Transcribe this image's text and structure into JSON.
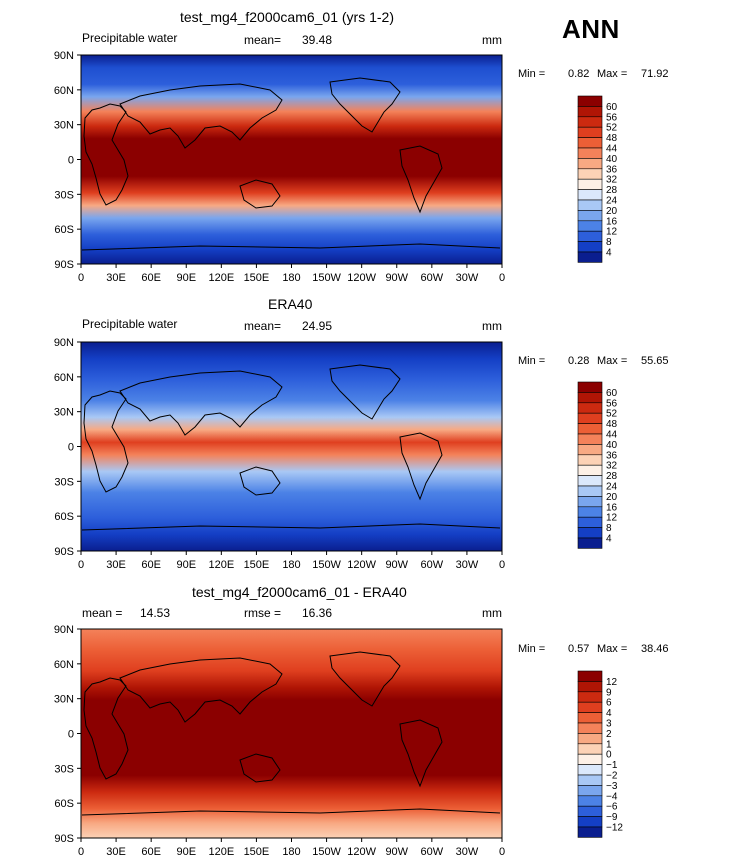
{
  "season_label": "ANN",
  "panels": [
    {
      "title": "test_mg4_f2000cam6_01 (yrs 1-2)",
      "left_label": "Precipitable water",
      "stat_label": "mean=",
      "stat_value": "39.48",
      "stat2_label": "",
      "stat2_value": "",
      "units": "mm",
      "min_label": "Min =",
      "min_value": "0.82",
      "max_label": "Max =",
      "max_value": "71.92",
      "colorbar": {
        "labels": [
          "60",
          "56",
          "52",
          "48",
          "44",
          "40",
          "36",
          "32",
          "28",
          "24",
          "20",
          "16",
          "12",
          "8",
          "4"
        ],
        "colors": [
          "#8b0000",
          "#b01505",
          "#cc2a10",
          "#df3f1f",
          "#ec5f36",
          "#f4825a",
          "#f8a983",
          "#fcd2b6",
          "#fdf0e6",
          "#dbe8fb",
          "#a9c8f5",
          "#7aa6ee",
          "#4c82e6",
          "#2d5fdb",
          "#143fc5",
          "#0a1e8f"
        ]
      }
    },
    {
      "title": "ERA40",
      "left_label": "Precipitable water",
      "stat_label": "mean=",
      "stat_value": "24.95",
      "stat2_label": "",
      "stat2_value": "",
      "units": "mm",
      "min_label": "Min =",
      "min_value": "0.28",
      "max_label": "Max =",
      "max_value": "55.65",
      "colorbar": {
        "labels": [
          "60",
          "56",
          "52",
          "48",
          "44",
          "40",
          "36",
          "32",
          "28",
          "24",
          "20",
          "16",
          "12",
          "8",
          "4"
        ],
        "colors": [
          "#8b0000",
          "#b01505",
          "#cc2a10",
          "#df3f1f",
          "#ec5f36",
          "#f4825a",
          "#f8a983",
          "#fcd2b6",
          "#fdf0e6",
          "#dbe8fb",
          "#a9c8f5",
          "#7aa6ee",
          "#4c82e6",
          "#2d5fdb",
          "#143fc5",
          "#0a1e8f"
        ]
      }
    },
    {
      "title": "test_mg4_f2000cam6_01 - ERA40",
      "left_label": "mean =",
      "stat_label": "",
      "stat_value": "14.53",
      "stat2_label": "rmse =",
      "stat2_value": "16.36",
      "units": "mm",
      "min_label": "Min =",
      "min_value": "0.57",
      "max_label": "Max =",
      "max_value": "38.46",
      "colorbar": {
        "labels": [
          "12",
          "9",
          "6",
          "4",
          "3",
          "2",
          "1",
          "0",
          "−1",
          "−2",
          "−3",
          "−4",
          "−6",
          "−9",
          "−12"
        ],
        "colors": [
          "#8b0000",
          "#b01505",
          "#cc2a10",
          "#df3f1f",
          "#ec5f36",
          "#f4825a",
          "#f8a983",
          "#fcd2b6",
          "#fdf0e6",
          "#dbe8fb",
          "#a9c8f5",
          "#7aa6ee",
          "#4c82e6",
          "#2d5fdb",
          "#143fc5",
          "#0a1e8f"
        ]
      }
    }
  ],
  "axes": {
    "lat_ticks": [
      "90N",
      "60N",
      "30N",
      "0",
      "30S",
      "60S",
      "90S"
    ],
    "lon_ticks": [
      "0",
      "30E",
      "60E",
      "90E",
      "120E",
      "150E",
      "180",
      "150W",
      "120W",
      "90W",
      "60W",
      "30W",
      "0"
    ]
  }
}
